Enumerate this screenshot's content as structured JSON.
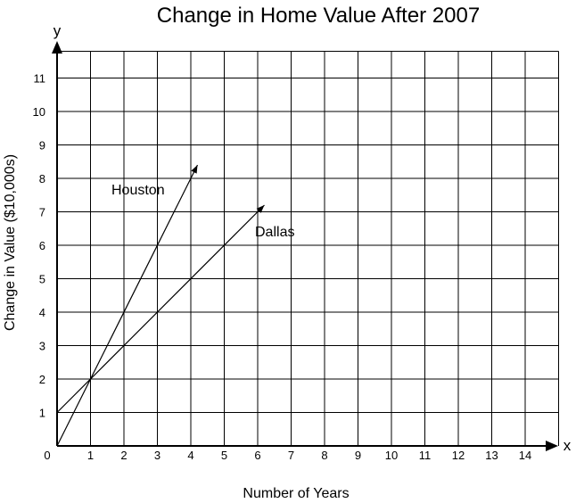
{
  "chart_data": {
    "type": "line",
    "title": "Change in Home Value After 2007",
    "xlabel": "Number of Years",
    "ylabel": "Change in Value ($10,000s)",
    "x_axis_letter": "x",
    "y_axis_letter": "y",
    "xlim": [
      0,
      15
    ],
    "ylim": [
      0,
      12
    ],
    "grid": true,
    "origin_label": "0",
    "x_ticks": [
      1,
      2,
      3,
      4,
      5,
      6,
      7,
      8,
      9,
      10,
      11,
      12,
      13,
      14
    ],
    "y_ticks": [
      1,
      2,
      3,
      4,
      5,
      6,
      7,
      8,
      9,
      10,
      11
    ],
    "series": [
      {
        "name": "Houston",
        "x": [
          0,
          4.2
        ],
        "y": [
          0,
          8.4
        ]
      },
      {
        "name": "Dallas",
        "x": [
          0,
          6.2
        ],
        "y": [
          1,
          7.2
        ]
      }
    ]
  }
}
